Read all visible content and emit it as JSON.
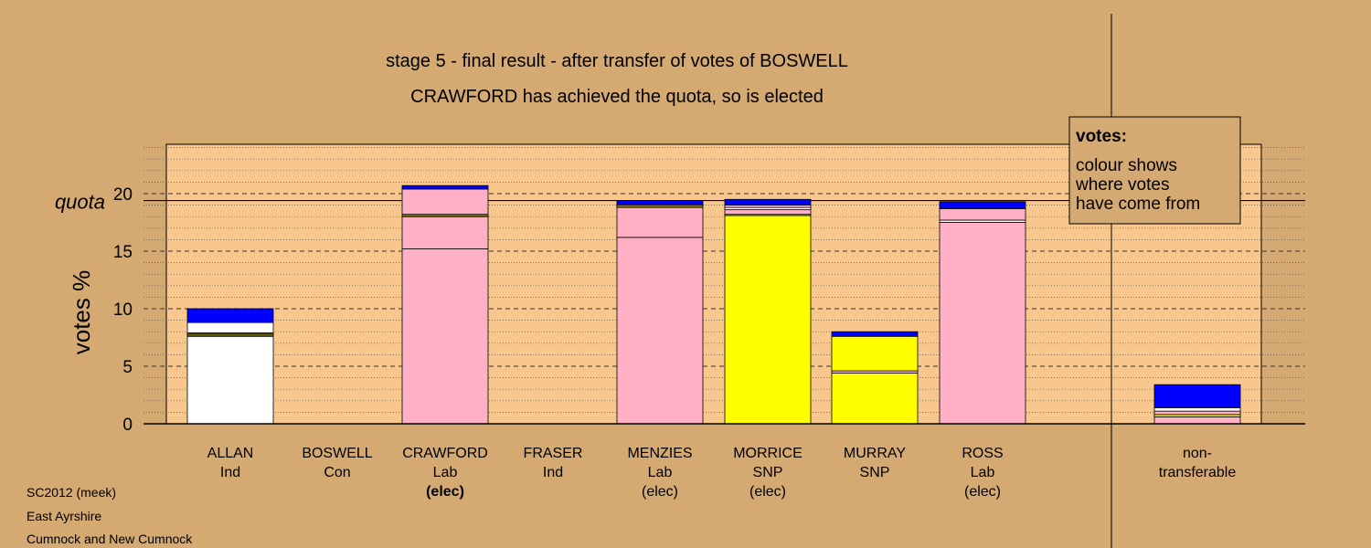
{
  "colors": {
    "background": "#d4a972",
    "plot_area": "#f8c78e",
    "Ind": "#ffffff",
    "Con": "#0000ff",
    "Lab": "#ffb0c4",
    "SNP": "#ffff00",
    "legend_box": "#d4a972"
  },
  "chart_data": {
    "type": "bar",
    "stacked": true,
    "title": "stage 5 - final result - after transfer of votes of BOSWELL",
    "subtitle": "CRAWFORD has achieved the quota, so is elected",
    "ylabel": "votes %",
    "quota_label": "quota",
    "quota": 19.4,
    "ylim": [
      0,
      24
    ],
    "yticks": [
      0,
      5,
      10,
      15,
      20
    ],
    "grid": "dashed major, dotted minor",
    "categories": [
      {
        "name": "ALLAN",
        "party": "Ind",
        "status": ""
      },
      {
        "name": "BOSWELL",
        "party": "Con",
        "status": ""
      },
      {
        "name": "CRAWFORD",
        "party": "Lab",
        "status": "(elec)"
      },
      {
        "name": "FRASER",
        "party": "Ind",
        "status": ""
      },
      {
        "name": "MENZIES",
        "party": "Lab",
        "status": "(elec)"
      },
      {
        "name": "MORRICE",
        "party": "SNP",
        "status": "(elec)"
      },
      {
        "name": "MURRAY",
        "party": "SNP",
        "status": ""
      },
      {
        "name": "ROSS",
        "party": "Lab",
        "status": "(elec)"
      },
      {
        "name": "non-\ntransferable",
        "party": "",
        "status": ""
      }
    ],
    "bars": [
      {
        "category": "ALLAN",
        "segments": [
          {
            "source": "Ind",
            "value": 7.6
          },
          {
            "source": "Lab",
            "value": 0.1
          },
          {
            "source": "SNP",
            "value": 0.1
          },
          {
            "source": "Lab",
            "value": 0.1
          },
          {
            "source": "Ind",
            "value": 0.9
          },
          {
            "source": "Con",
            "value": 1.2
          }
        ]
      },
      {
        "category": "BOSWELL",
        "segments": []
      },
      {
        "category": "CRAWFORD",
        "segments": [
          {
            "source": "Lab",
            "value": 15.2
          },
          {
            "source": "Lab",
            "value": 2.8
          },
          {
            "source": "SNP",
            "value": 0.1
          },
          {
            "source": "Ind",
            "value": 0.1
          },
          {
            "source": "Lab",
            "value": 2.2
          },
          {
            "source": "Con",
            "value": 0.3
          }
        ]
      },
      {
        "category": "FRASER",
        "segments": []
      },
      {
        "category": "MENZIES",
        "segments": [
          {
            "source": "Lab",
            "value": 16.2
          },
          {
            "source": "Lab",
            "value": 2.6
          },
          {
            "source": "SNP",
            "value": 0.1
          },
          {
            "source": "Ind",
            "value": 0.1
          },
          {
            "source": "Lab",
            "value": 0.1
          },
          {
            "source": "Con",
            "value": 0.3
          }
        ]
      },
      {
        "category": "MORRICE",
        "segments": [
          {
            "source": "SNP",
            "value": 18.1
          },
          {
            "source": "SNP",
            "value": 0.1
          },
          {
            "source": "Lab",
            "value": 0.4
          },
          {
            "source": "Ind",
            "value": 0.2
          },
          {
            "source": "Lab",
            "value": 0.2
          },
          {
            "source": "Con",
            "value": 0.5
          }
        ]
      },
      {
        "category": "MURRAY",
        "segments": [
          {
            "source": "SNP",
            "value": 4.4
          },
          {
            "source": "Lab",
            "value": 0.2
          },
          {
            "source": "SNP",
            "value": 3.0
          },
          {
            "source": "Con",
            "value": 0.4
          }
        ]
      },
      {
        "category": "ROSS",
        "segments": [
          {
            "source": "Lab",
            "value": 17.5
          },
          {
            "source": "Ind",
            "value": 0.2
          },
          {
            "source": "Lab",
            "value": 1.0
          },
          {
            "source": "Con",
            "value": 0.6
          }
        ]
      },
      {
        "category": "non-transferable",
        "segments": [
          {
            "source": "Lab",
            "value": 0.6
          },
          {
            "source": "SNP",
            "value": 0.2
          },
          {
            "source": "Lab",
            "value": 0.3
          },
          {
            "source": "Ind",
            "value": 0.3
          },
          {
            "source": "Con",
            "value": 2.0
          }
        ]
      }
    ],
    "legend": {
      "title": "votes:",
      "lines": [
        "colour shows",
        "where votes",
        "have come from"
      ],
      "placement": "top-right"
    }
  },
  "footer": {
    "line1": "SC2012 (meek)",
    "line2": "East Ayrshire",
    "line3": "Cumnock and New Cumnock"
  }
}
